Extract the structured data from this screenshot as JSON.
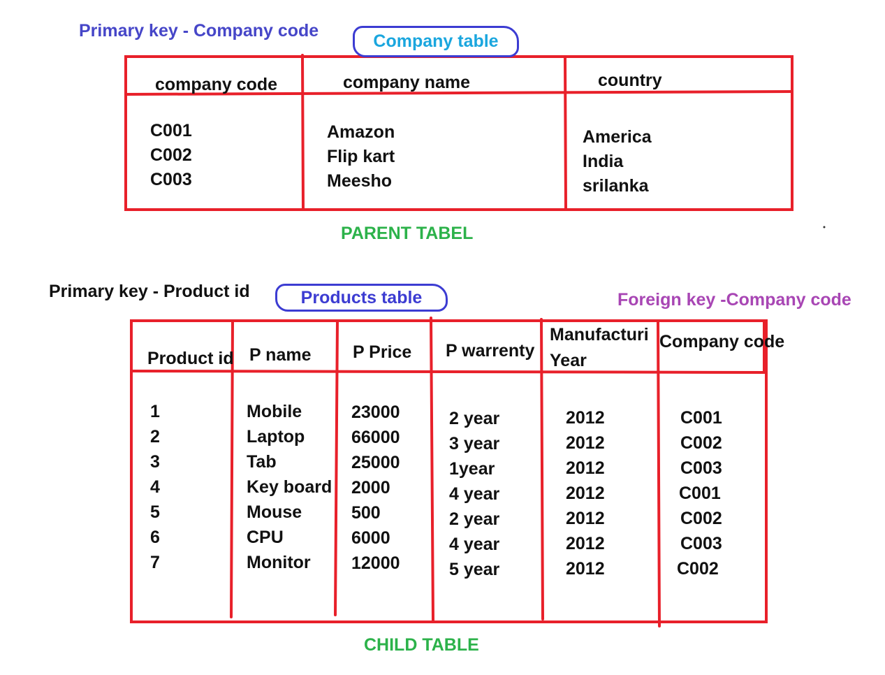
{
  "labels": {
    "pk_company": "Primary key - Company code",
    "company_table": "Company table",
    "parent_table": "PARENT TABEL",
    "pk_product": "Primary key - Product id",
    "products_table": "Products table",
    "fk_company": "Foreign key -Company code",
    "child_table": "CHILD TABLE"
  },
  "company_table": {
    "headers": [
      "company code",
      "company name",
      "country"
    ],
    "codes": [
      "C001",
      "C002",
      "C003"
    ],
    "names": [
      "Amazon",
      "Flip kart",
      "Meesho"
    ],
    "countries": [
      "America",
      "India",
      "srilanka"
    ]
  },
  "products_table": {
    "headers": {
      "product_id": "Product id",
      "p_name": "P name",
      "p_price": "P Price",
      "p_warrenty": "P warrenty",
      "manufacturing_line1": "Manufacturi",
      "manufacturing_line2": "Year",
      "company_code": "Company code"
    },
    "ids": [
      "1",
      "2",
      "3",
      "4",
      "5",
      "6",
      "7"
    ],
    "names": [
      "Mobile",
      "Laptop",
      "Tab",
      "Key board",
      "Mouse",
      "CPU",
      "Monitor"
    ],
    "prices": [
      "23000",
      "66000",
      "25000",
      "2000",
      "500",
      "6000",
      "12000"
    ],
    "warrenty": [
      "2 year",
      "3 year",
      "1year",
      "4 year",
      "2 year",
      "4 year",
      "5 year"
    ],
    "years": [
      "2012",
      "2012",
      "2012",
      "2012",
      "2012",
      "2012",
      "2012"
    ],
    "company_codes": [
      "C001",
      "C002",
      "C003",
      "C001",
      "C002",
      "C003",
      "C002"
    ]
  },
  "colors": {
    "table_lines": "#e8202a",
    "oval_border": "#3c3cd2",
    "green_label": "#2cb24a",
    "blue_label": "#4646c8",
    "cyan_text": "#1aa6de",
    "purple_label": "#a846b4"
  }
}
